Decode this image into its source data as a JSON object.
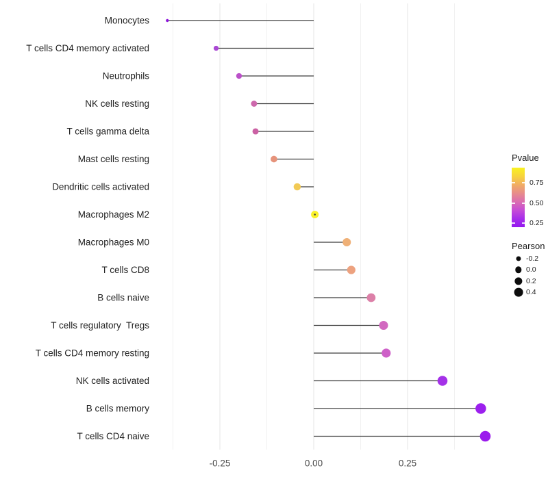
{
  "chart_data": {
    "type": "scatter",
    "style": "lollipop",
    "orientation": "horizontal",
    "title": "",
    "xlabel": "",
    "ylabel": "",
    "xlim": [
      -0.43,
      0.5
    ],
    "grid": "vertical-only",
    "background": "#FFFFFF",
    "stem_color": "#3C3C3C",
    "grid_major_color": "#E5E5E5",
    "grid_minor_color": "#F1F1F1",
    "x_ticks": [
      {
        "value": -0.25,
        "label": "-0.25"
      },
      {
        "value": 0.0,
        "label": "0.00"
      },
      {
        "value": 0.25,
        "label": "0.25"
      }
    ],
    "x_minor_gridlines": [
      -0.375,
      -0.125,
      0.125,
      0.375
    ],
    "points": [
      {
        "label": "Monocytes",
        "pearson": -0.39,
        "pvalue": 0.19,
        "color": "#8E17DC"
      },
      {
        "label": "T cells CD4 memory activated",
        "pearson": -0.26,
        "pvalue": 0.31,
        "color": "#AA48D4"
      },
      {
        "label": "Neutrophils",
        "pearson": -0.199,
        "pvalue": 0.36,
        "color": "#BB51C9"
      },
      {
        "label": "NK cells resting",
        "pearson": -0.159,
        "pvalue": 0.48,
        "color": "#CD68AC"
      },
      {
        "label": "T cells gamma delta",
        "pearson": -0.155,
        "pvalue": 0.47,
        "color": "#CB61A4"
      },
      {
        "label": "Mast cells resting",
        "pearson": -0.106,
        "pvalue": 0.63,
        "color": "#E6937B"
      },
      {
        "label": "Dendritic cells activated",
        "pearson": -0.044,
        "pvalue": 0.82,
        "color": "#F2CA55"
      },
      {
        "label": "Macrophages M2",
        "pearson": 0.003,
        "pvalue": 0.93,
        "color": "#FAF22B",
        "center_dot": true
      },
      {
        "label": "Macrophages M0",
        "pearson": 0.088,
        "pvalue": 0.71,
        "color": "#EFB077"
      },
      {
        "label": "T cells CD8",
        "pearson": 0.1,
        "pvalue": 0.68,
        "color": "#EDA27F"
      },
      {
        "label": "B cells naive",
        "pearson": 0.153,
        "pvalue": 0.53,
        "color": "#DC80A8"
      },
      {
        "label": "T cells regulatory  Tregs",
        "pearson": 0.186,
        "pvalue": 0.43,
        "color": "#D269C0"
      },
      {
        "label": "T cells CD4 memory resting",
        "pearson": 0.193,
        "pvalue": 0.4,
        "color": "#CE60C8"
      },
      {
        "label": "NK cells activated",
        "pearson": 0.343,
        "pvalue": 0.24,
        "color": "#A431E8"
      },
      {
        "label": "B cells memory",
        "pearson": 0.445,
        "pvalue": 0.21,
        "color": "#9C20EE"
      },
      {
        "label": "T cells CD4 naive",
        "pearson": 0.457,
        "pvalue": 0.2,
        "color": "#9A1BEC"
      }
    ],
    "legend_pvalue": {
      "title": "Pvalue",
      "ticks": [
        "0.75",
        "0.50",
        "0.25"
      ],
      "gradient_top_to_bottom": [
        "#F9F121",
        "#F7D43C",
        "#F1AD64",
        "#E78D8B",
        "#DB6DB1",
        "#C64CD6",
        "#A72EEA",
        "#9318EF"
      ]
    },
    "legend_pearson": {
      "title": "Pearson",
      "items": [
        {
          "label": "-0.2",
          "value": -0.2
        },
        {
          "label": "0.0",
          "value": 0.0
        },
        {
          "label": "0.2",
          "value": 0.2
        },
        {
          "label": "0.4",
          "value": 0.4
        }
      ]
    }
  }
}
